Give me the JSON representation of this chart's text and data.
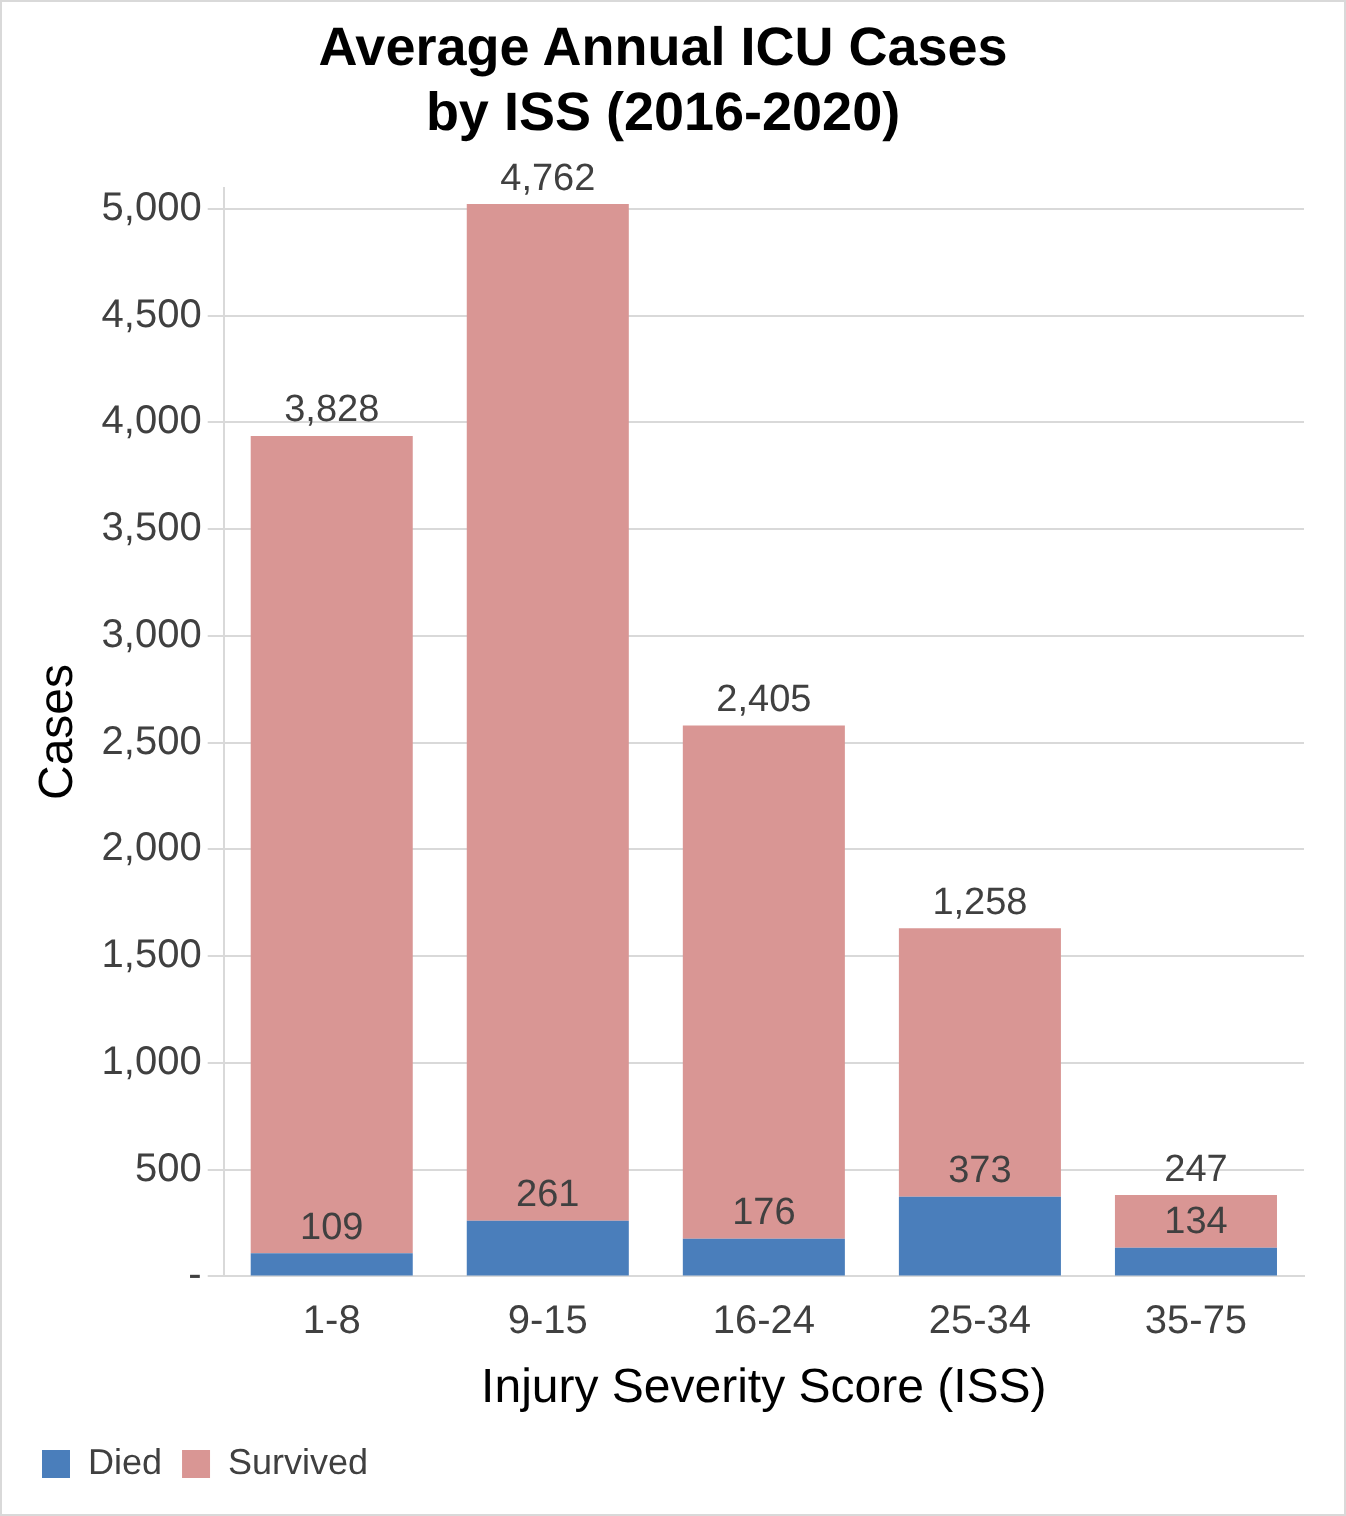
{
  "chart_data": {
    "type": "bar",
    "title": "Average Annual ICU Cases\nby ISS (2016-2020)",
    "xlabel": "Injury Severity Score (ISS)",
    "ylabel": "Cases",
    "categories": [
      "1-8",
      "9-15",
      "16-24",
      "25-34",
      "35-75"
    ],
    "series": [
      {
        "name": "Died",
        "color": "#4a7ebb",
        "values": [
          109,
          261,
          176,
          373,
          134
        ],
        "value_labels": [
          "109",
          "261",
          "176",
          "373",
          "134"
        ]
      },
      {
        "name": "Survived",
        "color": "#d99694",
        "values": [
          3828,
          4762,
          2405,
          1258,
          247
        ],
        "value_labels": [
          "3,828",
          "4,762",
          "2,405",
          "1,258",
          "247"
        ]
      }
    ],
    "stacked": true,
    "grid": "y",
    "legend": "bottom left",
    "ylim": [
      0,
      5100
    ],
    "yticks": [
      {
        "value": 0,
        "label": "-"
      },
      {
        "value": 500,
        "label": "500"
      },
      {
        "value": 1000,
        "label": "1,000"
      },
      {
        "value": 1500,
        "label": "1,500"
      },
      {
        "value": 2000,
        "label": "2,000"
      },
      {
        "value": 2500,
        "label": "2,500"
      },
      {
        "value": 3000,
        "label": "3,000"
      },
      {
        "value": 3500,
        "label": "3,500"
      },
      {
        "value": 4000,
        "label": "4,000"
      },
      {
        "value": 4500,
        "label": "4,500"
      },
      {
        "value": 5000,
        "label": "5,000"
      }
    ]
  }
}
